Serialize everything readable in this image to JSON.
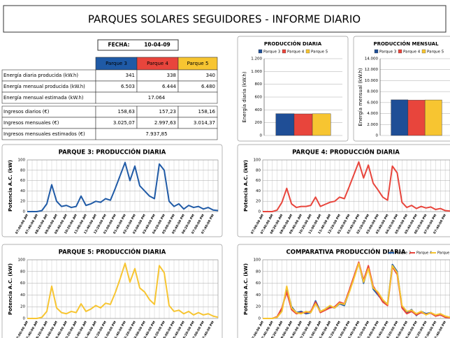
{
  "header": {
    "title": "PARQUES SOLARES SEGUIDORES - INFORME DIARIO"
  },
  "fecha": {
    "label": "FECHA:",
    "value": "10-04-09"
  },
  "table": {
    "columns": [
      "Parque 3",
      "Parque 4",
      "Parque 5"
    ],
    "column_colors": [
      "#1f5aa6",
      "#e8453c",
      "#f7c531"
    ],
    "rows": [
      {
        "label": "Energía diaria producida (kW.h)",
        "cells": [
          "341",
          "338",
          "340"
        ]
      },
      {
        "label": "Energía mensual producida (kW.h)",
        "cells": [
          "6.503",
          "6.444",
          "6.480"
        ]
      },
      {
        "label": "Energía mensual estimada (kW.h)",
        "cells": [
          "17.064"
        ]
      },
      {
        "label": "Ingresos diarios (€)",
        "cells": [
          "158,63",
          "157,23",
          "158,16"
        ]
      },
      {
        "label": "Ingresos mensuales (€)",
        "cells": [
          "3.025,07",
          "2.997,63",
          "3.014,37"
        ]
      },
      {
        "label": "Ingresos mensuales estimados (€)",
        "cells": [
          "7.937,85"
        ]
      }
    ]
  },
  "chart_data": [
    {
      "type": "bar",
      "title": "PRODUCCIÓN DIARIA",
      "y_label": "Energía diaria (kW.h)",
      "legend": "top",
      "categories": [
        null
      ],
      "series": [
        {
          "name": "Parque 3",
          "color": "#1f4e96",
          "values": [
            341
          ]
        },
        {
          "name": "Parque 4",
          "color": "#e8453c",
          "values": [
            338
          ]
        },
        {
          "name": "Parque 5",
          "color": "#f7c531",
          "values": [
            340
          ]
        }
      ],
      "ylim": [
        0,
        1200
      ],
      "yticks": [
        0,
        200,
        400,
        600,
        800,
        {
          "value": 1000,
          "label": "1.000"
        },
        {
          "value": 1200,
          "label": "1.200"
        }
      ]
    },
    {
      "type": "bar",
      "title": "PRODUCCIÓN MENSUAL",
      "y_label": "Energía mensual (kW.h)",
      "legend": "top",
      "categories": [
        null
      ],
      "series": [
        {
          "name": "Parque 3",
          "color": "#1f4e96",
          "values": [
            6503
          ]
        },
        {
          "name": "Parque 4",
          "color": "#e8453c",
          "values": [
            6444
          ]
        },
        {
          "name": "Parque 5",
          "color": "#f7c531",
          "values": [
            6480
          ]
        }
      ],
      "ylim": [
        0,
        14000
      ],
      "yticks": [
        0,
        {
          "value": 2000,
          "label": "2.000"
        },
        {
          "value": 4000,
          "label": "4.000"
        },
        {
          "value": 6000,
          "label": "6.000"
        },
        {
          "value": 8000,
          "label": "8.000"
        },
        {
          "value": 10000,
          "label": "10.000"
        },
        {
          "value": 12000,
          "label": "12.000"
        },
        {
          "value": 14000,
          "label": "14.000"
        }
      ]
    },
    {
      "type": "line",
      "title": "PARQUE 3: PRODUCCIÓN DIARIA",
      "y_label": "Potencia A.C. (kW)",
      "grid": true,
      "categories": [
        "07:00:00 AM",
        null,
        "07:40:00 AM",
        null,
        "08:20:00 AM",
        null,
        "09:00:00 AM",
        null,
        "09:40:00 AM",
        null,
        "10:20:00 AM",
        null,
        "11:00:00 AM",
        null,
        "11:40:00 AM",
        null,
        "12:20:00 PM",
        null,
        "01:00:00 PM",
        null,
        "01:40:00 PM",
        null,
        "02:20:00 PM",
        null,
        "03:00:00 PM",
        null,
        "03:40:00 PM",
        null,
        "04:20:00 PM",
        null,
        "05:00:00 PM",
        null,
        "05:40:00 PM",
        null,
        "06:20:00 PM",
        null,
        "07:00:00 PM",
        null,
        "07:40:00 PM",
        null
      ],
      "series": [
        {
          "name": "Parque 3",
          "color": "#1f5aa6",
          "values": [
            0,
            0,
            0,
            2,
            15,
            52,
            20,
            10,
            12,
            8,
            10,
            30,
            12,
            15,
            20,
            18,
            25,
            22,
            45,
            70,
            95,
            60,
            88,
            50,
            40,
            30,
            25,
            92,
            80,
            20,
            10,
            15,
            5,
            12,
            8,
            10,
            5,
            8,
            3,
            2
          ]
        }
      ],
      "ylim": [
        0,
        100
      ],
      "yticks": [
        0,
        20,
        40,
        60,
        80,
        100
      ]
    },
    {
      "type": "line",
      "title": "PARQUE 4: PRODUCCIÓN DIARIA",
      "y_label": "Potencia A.C. (kW)",
      "grid": true,
      "categories": [
        "07:00:00 AM",
        null,
        "07:40:00 AM",
        null,
        "08:20:00 AM",
        null,
        "09:00:00 AM",
        null,
        "09:40:00 AM",
        null,
        "10:20:00 AM",
        null,
        "11:00:00 AM",
        null,
        "11:40:00 AM",
        null,
        "12:20:00 PM",
        null,
        "01:00:00 PM",
        null,
        "01:40:00 PM",
        null,
        "02:20:00 PM",
        null,
        "03:00:00 PM",
        null,
        "03:40:00 PM",
        null,
        "04:20:00 PM",
        null,
        "05:00:00 PM",
        null,
        "05:40:00 PM",
        null,
        "06:20:00 PM",
        null,
        "07:00:00 PM",
        null,
        "07:40:00 PM",
        null
      ],
      "series": [
        {
          "name": "Parque 4",
          "color": "#e8453c",
          "values": [
            0,
            0,
            0,
            3,
            18,
            45,
            15,
            8,
            10,
            10,
            12,
            28,
            10,
            14,
            18,
            20,
            28,
            25,
            48,
            72,
            96,
            65,
            90,
            55,
            42,
            28,
            22,
            88,
            75,
            18,
            8,
            12,
            6,
            10,
            7,
            9,
            4,
            6,
            2,
            1
          ]
        }
      ],
      "ylim": [
        0,
        100
      ],
      "yticks": [
        0,
        20,
        40,
        60,
        80,
        100
      ]
    },
    {
      "type": "line",
      "title": "PARQUE 5: PRODUCCIÓN DIARIA",
      "y_label": "Potencia A.C. (kW)",
      "grid": true,
      "categories": [
        "07:00:00 AM",
        null,
        "07:40:00 AM",
        null,
        "08:20:00 AM",
        null,
        "09:00:00 AM",
        null,
        "09:40:00 AM",
        null,
        "10:20:00 AM",
        null,
        "11:00:00 AM",
        null,
        "11:40:00 AM",
        null,
        "12:20:00 PM",
        null,
        "01:00:00 PM",
        null,
        "01:40:00 PM",
        null,
        "02:20:00 PM",
        null,
        "03:00:00 PM",
        null,
        "03:40:00 PM",
        null,
        "04:20:00 PM",
        null,
        "05:00:00 PM",
        null,
        "05:40:00 PM",
        null,
        "06:20:00 PM",
        null,
        "07:00:00 PM",
        null,
        "07:40:00 PM",
        null
      ],
      "series": [
        {
          "name": "Parque 5",
          "color": "#f7c531",
          "values": [
            0,
            0,
            0,
            2,
            12,
            55,
            18,
            10,
            8,
            12,
            10,
            25,
            12,
            16,
            22,
            18,
            26,
            24,
            44,
            68,
            94,
            62,
            85,
            52,
            45,
            32,
            24,
            90,
            78,
            22,
            12,
            14,
            8,
            12,
            6,
            10,
            6,
            8,
            4,
            2
          ]
        }
      ],
      "ylim": [
        0,
        100
      ],
      "yticks": [
        0,
        20,
        40,
        60,
        80,
        100
      ]
    },
    {
      "type": "line",
      "title": "COMPARATIVA PRODUCCIÓN DIARIA",
      "y_label": "Potencia A.C. (kW)",
      "grid": true,
      "legend": "top-right",
      "categories": [
        "07:00:00 AM",
        null,
        "07:40:00 AM",
        null,
        "08:20:00 AM",
        null,
        "09:00:00 AM",
        null,
        "09:40:00 AM",
        null,
        "10:20:00 AM",
        null,
        "11:00:00 AM",
        null,
        "11:40:00 AM",
        null,
        "12:20:00 PM",
        null,
        "01:00:00 PM",
        null,
        "01:40:00 PM",
        null,
        "02:20:00 PM",
        null,
        "03:00:00 PM",
        null,
        "03:40:00 PM",
        null,
        "04:20:00 PM",
        null,
        "05:00:00 PM",
        null,
        "05:40:00 PM",
        null,
        "06:20:00 PM",
        null,
        "07:00:00 PM",
        null,
        "07:40:00 PM",
        null
      ],
      "series": [
        {
          "name": "Parque 3",
          "color": "#1f5aa6",
          "values": [
            0,
            0,
            0,
            2,
            15,
            52,
            20,
            10,
            12,
            8,
            10,
            30,
            12,
            15,
            20,
            18,
            25,
            22,
            45,
            70,
            95,
            60,
            88,
            50,
            40,
            30,
            25,
            92,
            80,
            20,
            10,
            15,
            5,
            12,
            8,
            10,
            5,
            8,
            3,
            2
          ]
        },
        {
          "name": "Parque 4",
          "color": "#e8453c",
          "values": [
            0,
            0,
            0,
            3,
            18,
            45,
            15,
            8,
            10,
            10,
            12,
            28,
            10,
            14,
            18,
            20,
            28,
            25,
            48,
            72,
            96,
            65,
            90,
            55,
            42,
            28,
            22,
            88,
            75,
            18,
            8,
            12,
            6,
            10,
            7,
            9,
            4,
            6,
            2,
            1
          ]
        },
        {
          "name": "Parque 5",
          "color": "#f7c531",
          "values": [
            0,
            0,
            0,
            2,
            12,
            55,
            18,
            10,
            8,
            12,
            10,
            25,
            12,
            16,
            22,
            18,
            26,
            24,
            44,
            68,
            94,
            62,
            85,
            52,
            45,
            32,
            24,
            90,
            78,
            22,
            12,
            14,
            8,
            12,
            6,
            10,
            6,
            8,
            4,
            2
          ]
        }
      ],
      "ylim": [
        0,
        100
      ],
      "yticks": [
        0,
        20,
        40,
        60,
        80,
        100
      ]
    }
  ]
}
